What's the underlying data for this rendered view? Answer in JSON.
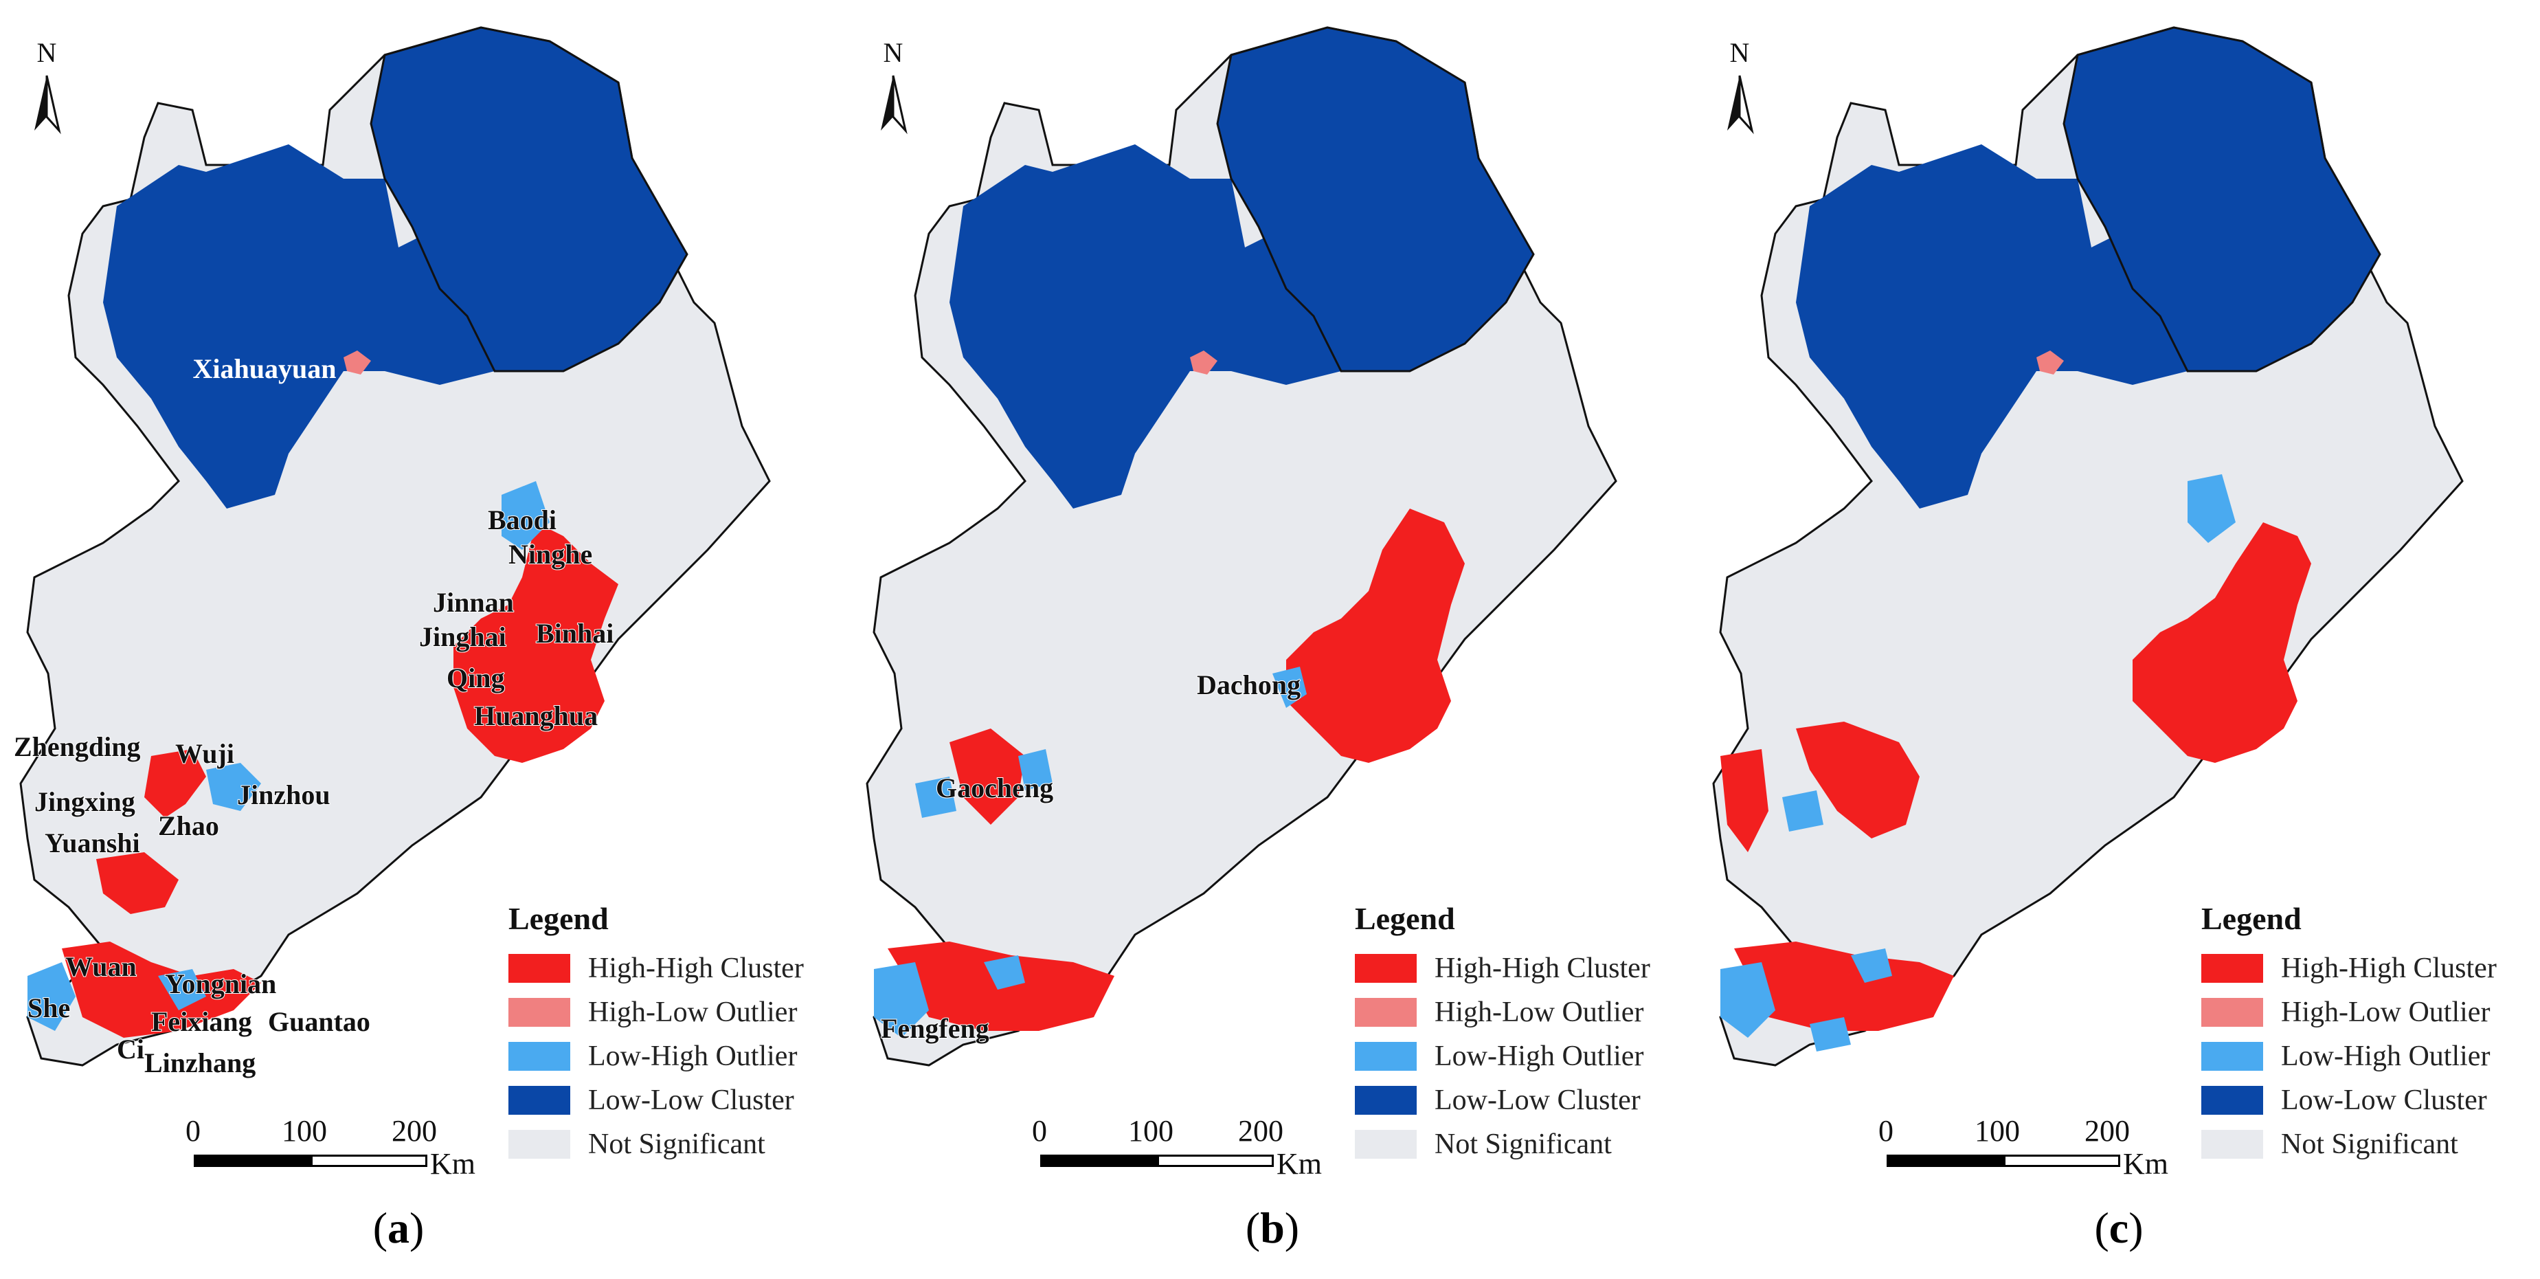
{
  "colors": {
    "high_high": "#f21f1f",
    "high_low": "#f08080",
    "low_high": "#4aaaf0",
    "low_low": "#0a47a7",
    "not_significant": "#e8eaee",
    "boundary": "#111111"
  },
  "north_arrow": {
    "letter": "N"
  },
  "legend": {
    "title": "Legend",
    "items": [
      {
        "label": "High-High Cluster",
        "color": "#f21f1f"
      },
      {
        "label": "High-Low Outlier",
        "color": "#f08080"
      },
      {
        "label": "Low-High Outlier",
        "color": "#4aaaf0"
      },
      {
        "label": "Low-Low Cluster",
        "color": "#0a47a7"
      },
      {
        "label": "Not Significant",
        "color": "#e8eaee"
      }
    ]
  },
  "scalebar": {
    "ticks": [
      "0",
      "100",
      "200"
    ],
    "unit": "Km"
  },
  "panels": [
    {
      "id": "a",
      "label": "a",
      "places": [
        "Xiahuayuan",
        "Baodi",
        "Ninghe",
        "Jinnan",
        "Jinghai",
        "Binhai",
        "Qing",
        "Huanghua",
        "Zhengding",
        "Wuji",
        "Jingxing",
        "Jinzhou",
        "Yuanshi",
        "Zhao",
        "Wuan",
        "Yongnian",
        "She",
        "Feixiang",
        "Guantao",
        "Ci",
        "Linzhang"
      ]
    },
    {
      "id": "b",
      "label": "b",
      "places": [
        "Dachong",
        "Gaocheng",
        "Fengfeng"
      ]
    },
    {
      "id": "c",
      "label": "c",
      "places": []
    }
  ]
}
